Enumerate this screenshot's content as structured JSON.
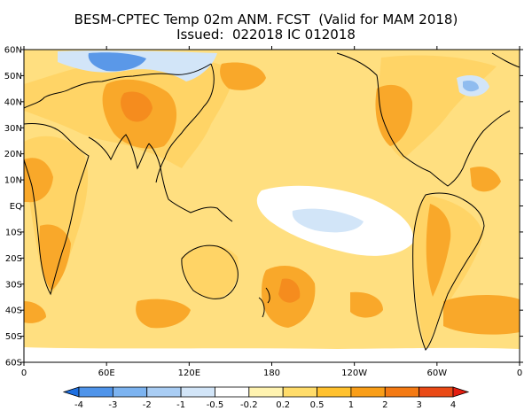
{
  "title": {
    "line1": "BESM-CPTEC Temp 02m ANM. FCST  (Valid for MAM 2018)",
    "line2": "Issued:  022018 IC 012018"
  },
  "map": {
    "lat_labels": [
      "60N",
      "50N",
      "40N",
      "30N",
      "20N",
      "10N",
      "EQ",
      "10S",
      "20S",
      "30S",
      "40S",
      "50S",
      "60S"
    ],
    "lon_labels": [
      "0",
      "60E",
      "120E",
      "180",
      "120W",
      "60W",
      "0"
    ],
    "lat_range": [
      -60,
      60
    ],
    "lon_range": [
      0,
      360
    ]
  },
  "colorbar": {
    "levels": [
      "-4",
      "-3",
      "-2",
      "-1",
      "-0.5",
      "-0.2",
      "0.2",
      "0.5",
      "1",
      "2",
      "3",
      "4"
    ],
    "colors": [
      "#1e6fe0",
      "#4f94ea",
      "#7cb3f0",
      "#a9cdf4",
      "#d2e5f8",
      "#ffffff",
      "#fff3b0",
      "#ffdc6a",
      "#ffc12e",
      "#f99e18",
      "#f47a14",
      "#ea4a16",
      "#e41e10"
    ]
  },
  "field_colors": {
    "ocean": "#ffdf80",
    "land": "#ffd466",
    "warm": "#f9a82a",
    "hot": "#f58c1e",
    "neutral": "#ffffff",
    "cool": "#d2e5f8",
    "cold": "#8fbcef",
    "coldest": "#5a98e8"
  }
}
